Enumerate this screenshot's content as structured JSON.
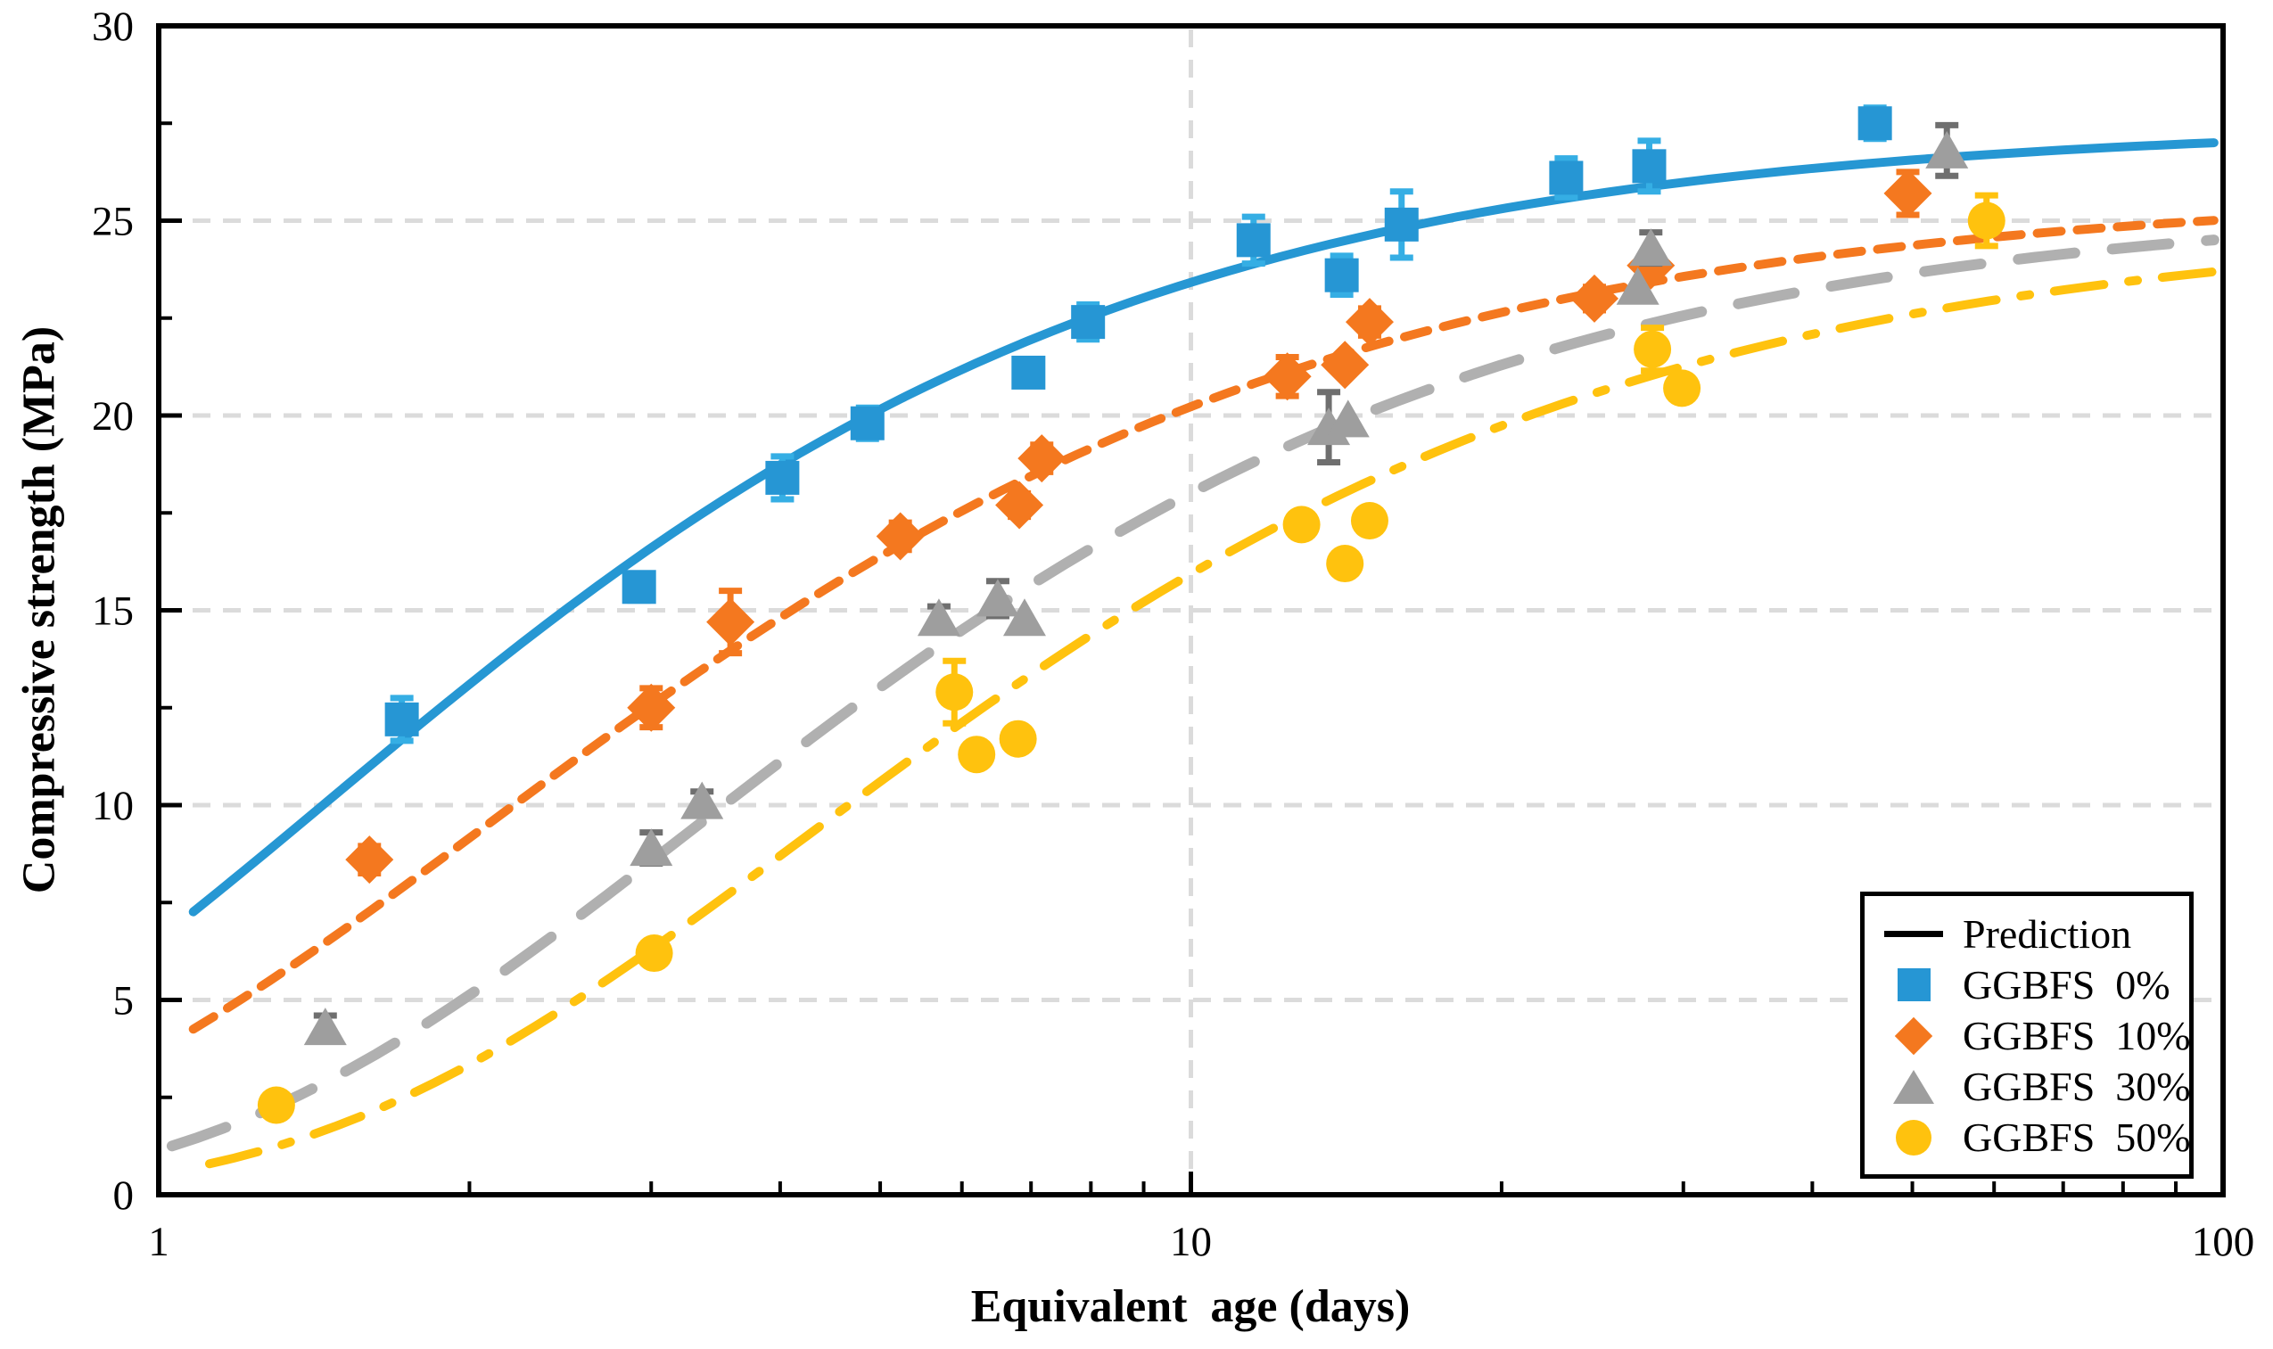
{
  "figure": {
    "x_axis_title": "Equivalent  age (days)",
    "y_axis_title": "Compressive strength (MPa)"
  },
  "legend": {
    "prediction_label": "Prediction",
    "items": [
      {
        "label": "GGBFS  0%",
        "marker": "square",
        "color": "#2696D4"
      },
      {
        "label": "GGBFS  10%",
        "marker": "diamond",
        "color": "#F4781F"
      },
      {
        "label": "GGBFS  30%",
        "marker": "triangle",
        "color": "#9E9E9E"
      },
      {
        "label": "GGBFS  50%",
        "marker": "circle",
        "color": "#FFC20E"
      }
    ]
  },
  "chart_data": {
    "type": "scatter",
    "x_scale": "log",
    "xlabel": "Equivalent  age (days)",
    "ylabel": "Compressive strength (MPa)",
    "xlim": [
      1,
      100
    ],
    "ylim": [
      0,
      30
    ],
    "x_ticks": [
      1,
      10,
      100
    ],
    "x_minor_ticks": [
      2,
      3,
      4,
      5,
      6,
      7,
      8,
      9,
      20,
      30,
      40,
      50,
      60,
      70,
      80,
      90
    ],
    "y_ticks": [
      0,
      5,
      10,
      15,
      20,
      25,
      30
    ],
    "y_minor_ticks": [
      2.5,
      7.5,
      12.5,
      17.5,
      22.5,
      27.5
    ],
    "grid": {
      "y_values": [
        5,
        10,
        15,
        20,
        25
      ],
      "x_values": [
        10
      ],
      "color": "#DBDBDB"
    },
    "series": [
      {
        "name": "GGBFS 0%",
        "marker": "square",
        "color": "#2696D4",
        "error_color": "#35AEE4",
        "points": [
          {
            "x": 1.72,
            "y": 12.2,
            "err": 0.55
          },
          {
            "x": 2.92,
            "y": 15.6,
            "err": 0.35
          },
          {
            "x": 4.02,
            "y": 18.4,
            "err": 0.55
          },
          {
            "x": 4.86,
            "y": 19.8,
            "err": 0.4
          },
          {
            "x": 6.96,
            "y": 21.1,
            "err": 0.3
          },
          {
            "x": 7.95,
            "y": 22.4,
            "err": 0.45
          },
          {
            "x": 11.5,
            "y": 24.5,
            "err": 0.6
          },
          {
            "x": 14.0,
            "y": 23.6,
            "err": 0.5
          },
          {
            "x": 16.0,
            "y": 24.9,
            "err": 0.85
          },
          {
            "x": 23.1,
            "y": 26.1,
            "err": 0.5
          },
          {
            "x": 27.8,
            "y": 26.4,
            "err": 0.65
          },
          {
            "x": 46.0,
            "y": 27.5,
            "err": 0.4
          }
        ]
      },
      {
        "name": "GGBFS 10%",
        "marker": "diamond",
        "color": "#F4781F",
        "error_color": "#F4781F",
        "points": [
          {
            "x": 1.6,
            "y": 8.6,
            "err": 0.35
          },
          {
            "x": 3.0,
            "y": 12.5,
            "err": 0.5
          },
          {
            "x": 3.58,
            "y": 14.7,
            "err": 0.8
          },
          {
            "x": 5.23,
            "y": 16.9,
            "err": 0.35
          },
          {
            "x": 6.82,
            "y": 17.7,
            "err": 0.3
          },
          {
            "x": 7.17,
            "y": 18.9,
            "err": 0.35
          },
          {
            "x": 12.4,
            "y": 21.0,
            "err": 0.5
          },
          {
            "x": 14.1,
            "y": 21.3,
            "err": 0
          },
          {
            "x": 14.9,
            "y": 22.4,
            "err": 0.35
          },
          {
            "x": 24.6,
            "y": 23.0,
            "err": 0.3
          },
          {
            "x": 27.9,
            "y": 23.85,
            "err": 0
          },
          {
            "x": 49.5,
            "y": 25.7,
            "err": 0.55
          }
        ]
      },
      {
        "name": "GGBFS 30%",
        "marker": "triangle",
        "color": "#9E9E9E",
        "error_color": "#6F6F6F",
        "points": [
          {
            "x": 1.45,
            "y": 4.3,
            "err": 0.3
          },
          {
            "x": 3.0,
            "y": 8.9,
            "err": 0.4
          },
          {
            "x": 3.36,
            "y": 10.1,
            "err": 0.25
          },
          {
            "x": 5.7,
            "y": 14.8,
            "err": 0.3
          },
          {
            "x": 6.5,
            "y": 15.3,
            "err": 0.45
          },
          {
            "x": 6.9,
            "y": 14.8,
            "err": 0
          },
          {
            "x": 13.6,
            "y": 19.7,
            "err": 0.9
          },
          {
            "x": 14.2,
            "y": 19.9,
            "err": 0
          },
          {
            "x": 27.1,
            "y": 23.3,
            "err": 0
          },
          {
            "x": 27.9,
            "y": 24.3,
            "err": 0.4
          },
          {
            "x": 54.0,
            "y": 26.8,
            "err": 0.65
          }
        ]
      },
      {
        "name": "GGBFS 50%",
        "marker": "circle",
        "color": "#FFC20E",
        "error_color": "#FFC20E",
        "points": [
          {
            "x": 1.3,
            "y": 2.3,
            "err": 0
          },
          {
            "x": 3.02,
            "y": 6.2,
            "err": 0
          },
          {
            "x": 5.9,
            "y": 12.9,
            "err": 0.8
          },
          {
            "x": 6.2,
            "y": 11.3,
            "err": 0
          },
          {
            "x": 6.8,
            "y": 11.7,
            "err": 0
          },
          {
            "x": 12.8,
            "y": 17.2,
            "err": 0
          },
          {
            "x": 14.1,
            "y": 16.2,
            "err": 0
          },
          {
            "x": 14.9,
            "y": 17.3,
            "err": 0
          },
          {
            "x": 28.0,
            "y": 21.7,
            "err": 0.55
          },
          {
            "x": 29.9,
            "y": 20.7,
            "err": 0
          },
          {
            "x": 59.0,
            "y": 25.0,
            "err": 0.65
          }
        ]
      }
    ],
    "prediction_curves": [
      {
        "name": "GGBFS 50% fit",
        "color": "#FFC20E",
        "width": 10,
        "dash": "56 28 10 28",
        "A": 25.0,
        "tau": 4.24,
        "beta": 0.93,
        "t_start": 1.12,
        "t_end": 98
      },
      {
        "name": "GGBFS 30% fit",
        "color": "#B0B0B0",
        "width": 12,
        "dash": "64 42",
        "A": 25.5,
        "tau": 3.29,
        "beta": 0.95,
        "t_start": 1.03,
        "t_end": 98
      },
      {
        "name": "GGBFS 10% fit",
        "color": "#F4781F",
        "width": 10,
        "dash": "27 18",
        "A": 25.8,
        "tau": 2.08,
        "beta": 0.9,
        "t_start": 1.08,
        "t_end": 98
      },
      {
        "name": "GGBFS 0% fit",
        "color": "#2697D3",
        "width": 10,
        "dash": "",
        "A": 27.5,
        "tau": 1.46,
        "beta": 0.95,
        "t_start": 1.08,
        "t_end": 98
      }
    ],
    "legend_position": "lower right",
    "title": ""
  }
}
